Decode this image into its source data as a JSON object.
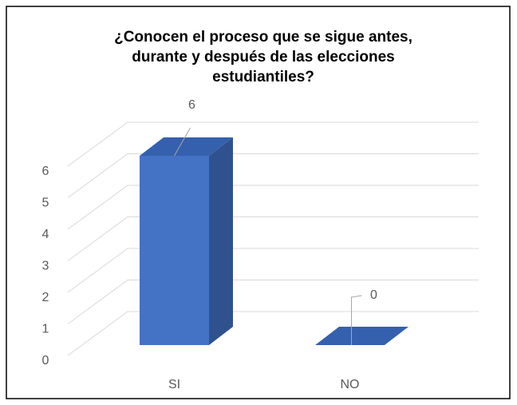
{
  "chart_data": {
    "type": "bar3d",
    "title": [
      "¿Conocen el proceso que se sigue antes,",
      "durante y después de las elecciones",
      "estudiantiles?"
    ],
    "categories": [
      "SI",
      "NO"
    ],
    "values": [
      6,
      0
    ],
    "color": "#4472c4",
    "ylim": [
      0,
      6
    ],
    "yticks": [
      0,
      1,
      2,
      3,
      4,
      5,
      6
    ],
    "grid": true,
    "data_labels": true
  }
}
